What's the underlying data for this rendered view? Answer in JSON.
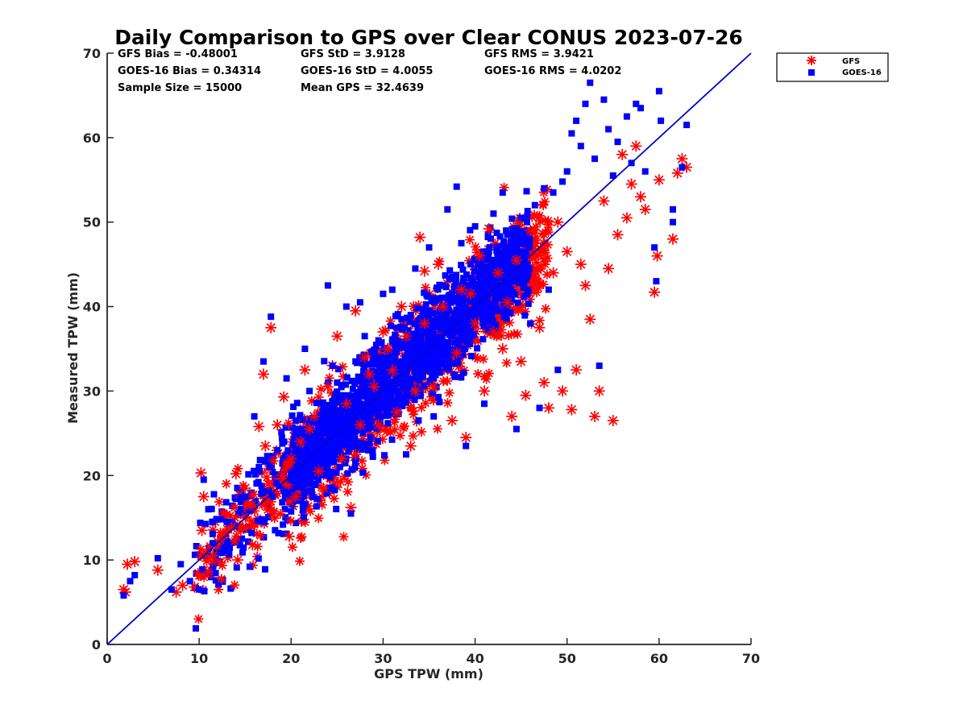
{
  "chart_data": {
    "type": "scatter",
    "title": "Daily Comparison to GPS over Clear CONUS 2023-07-26",
    "xlabel": "GPS TPW (mm)",
    "ylabel": "Measured TPW (mm)",
    "xlim": [
      0,
      70
    ],
    "ylim": [
      0,
      70
    ],
    "xticks": [
      0,
      10,
      20,
      30,
      40,
      50,
      60,
      70
    ],
    "yticks": [
      0,
      10,
      20,
      30,
      40,
      50,
      60,
      70
    ],
    "legend_position": "outside-top-right",
    "stats": {
      "gfs_bias": "GFS Bias = -0.48001",
      "gfs_std": "GFS StD = 3.9128",
      "gfs_rms": "GFS RMS = 3.9421",
      "goes_bias": "GOES-16 Bias = 0.34314",
      "goes_std": "GOES-16 StD = 4.0055",
      "goes_rms": "GOES-16 RMS = 4.0202",
      "sample_size": "Sample Size = 15000",
      "mean_gps": "Mean GPS = 32.4639"
    },
    "reference_line": {
      "name": "1:1 line",
      "from": [
        0,
        0
      ],
      "to": [
        70,
        70
      ],
      "color": "#0000cc"
    },
    "series": [
      {
        "name": "GFS",
        "marker": "asterisk",
        "color": "#ff0000",
        "points": [
          [
            1.8,
            6.5
          ],
          [
            2.2,
            9.5
          ],
          [
            3.0,
            9.8
          ],
          [
            2.0,
            6.2
          ],
          [
            5.5,
            8.8
          ],
          [
            7.5,
            6.2
          ],
          [
            8.2,
            7.0
          ],
          [
            9.5,
            6.8
          ],
          [
            10.2,
            20.3
          ],
          [
            10.5,
            17.5
          ],
          [
            10.3,
            13.5
          ],
          [
            11.5,
            10.5
          ],
          [
            12.0,
            12.2
          ],
          [
            13.5,
            13.8
          ],
          [
            14.0,
            20.2
          ],
          [
            14.2,
            10.0
          ],
          [
            15.0,
            18.5
          ],
          [
            15.8,
            11.8
          ],
          [
            16.5,
            25.8
          ],
          [
            17.0,
            32.0
          ],
          [
            17.2,
            23.5
          ],
          [
            17.8,
            37.5
          ],
          [
            17.5,
            19.0
          ],
          [
            18.5,
            26.0
          ],
          [
            19.2,
            29.3
          ],
          [
            19.8,
            12.8
          ],
          [
            20.0,
            22.0
          ],
          [
            21.5,
            32.5
          ],
          [
            22.0,
            25.5
          ],
          [
            23.0,
            20.5
          ],
          [
            24.0,
            30.5
          ],
          [
            25.0,
            36.5
          ],
          [
            25.5,
            22.0
          ],
          [
            26.5,
            16.2
          ],
          [
            27.0,
            39.5
          ],
          [
            27.5,
            26.0
          ],
          [
            28.0,
            34.0
          ],
          [
            29.0,
            30.5
          ],
          [
            30.0,
            37.0
          ],
          [
            31.0,
            32.5
          ],
          [
            31.5,
            27.5
          ],
          [
            32.0,
            40.0
          ],
          [
            33.0,
            23.5
          ],
          [
            34.0,
            48.2
          ],
          [
            34.5,
            44.2
          ],
          [
            35.5,
            30.5
          ],
          [
            36.0,
            45.0
          ],
          [
            37.5,
            26.5
          ],
          [
            38.0,
            34.5
          ],
          [
            39.0,
            24.5
          ],
          [
            39.5,
            41.5
          ],
          [
            40.0,
            38.0
          ],
          [
            40.5,
            46.0
          ],
          [
            41.0,
            30.0
          ],
          [
            41.5,
            49.2
          ],
          [
            42.0,
            37.0
          ],
          [
            43.0,
            35.0
          ],
          [
            43.5,
            40.5
          ],
          [
            44.0,
            27.0
          ],
          [
            44.5,
            45.5
          ],
          [
            45.0,
            33.5
          ],
          [
            45.5,
            29.5
          ],
          [
            46.5,
            43.0
          ],
          [
            47.0,
            37.5
          ],
          [
            47.5,
            31.0
          ],
          [
            48.0,
            28.0
          ],
          [
            48.5,
            44.0
          ],
          [
            49.0,
            50.0
          ],
          [
            49.5,
            30.0
          ],
          [
            50.0,
            46.5
          ],
          [
            50.5,
            27.8
          ],
          [
            51.0,
            32.5
          ],
          [
            51.5,
            45.0
          ],
          [
            52.0,
            42.5
          ],
          [
            52.5,
            38.5
          ],
          [
            53.0,
            27.0
          ],
          [
            53.5,
            30.0
          ],
          [
            54.0,
            52.5
          ],
          [
            54.5,
            44.5
          ],
          [
            55.0,
            26.5
          ],
          [
            55.5,
            48.5
          ],
          [
            56.0,
            58.0
          ],
          [
            56.5,
            50.5
          ],
          [
            57.0,
            54.5
          ],
          [
            57.5,
            59.0
          ],
          [
            58.0,
            53.0
          ],
          [
            58.5,
            51.5
          ],
          [
            59.5,
            41.7
          ],
          [
            59.8,
            46.0
          ],
          [
            60.0,
            55.0
          ],
          [
            61.5,
            48.0
          ],
          [
            62.0,
            55.8
          ],
          [
            62.5,
            57.5
          ],
          [
            63.0,
            56.5
          ],
          [
            20.5,
            17.5
          ],
          [
            22.5,
            27.0
          ],
          [
            24.5,
            33.0
          ],
          [
            26.0,
            28.5
          ],
          [
            28.5,
            32.0
          ],
          [
            30.5,
            35.0
          ],
          [
            32.5,
            36.5
          ],
          [
            34.5,
            38.0
          ],
          [
            36.5,
            40.0
          ],
          [
            38.5,
            42.0
          ],
          [
            42.5,
            44.0
          ],
          [
            46.0,
            49.0
          ],
          [
            18.0,
            15.5
          ],
          [
            19.0,
            20.0
          ],
          [
            21.0,
            24.0
          ],
          [
            23.5,
            18.5
          ],
          [
            27.0,
            22.5
          ],
          [
            29.5,
            26.0
          ],
          [
            33.5,
            30.0
          ]
        ]
      },
      {
        "name": "GOES-16",
        "marker": "square",
        "color": "#0000ff",
        "points": [
          [
            1.8,
            5.8
          ],
          [
            2.5,
            7.5
          ],
          [
            3.0,
            8.2
          ],
          [
            5.5,
            10.2
          ],
          [
            7.0,
            6.5
          ],
          [
            8.0,
            9.5
          ],
          [
            9.0,
            7.5
          ],
          [
            10.0,
            6.5
          ],
          [
            10.5,
            19.5
          ],
          [
            11.0,
            16.0
          ],
          [
            11.5,
            12.0
          ],
          [
            12.5,
            11.0
          ],
          [
            13.0,
            14.5
          ],
          [
            14.5,
            16.0
          ],
          [
            15.0,
            17.5
          ],
          [
            15.5,
            9.2
          ],
          [
            16.0,
            27.0
          ],
          [
            16.5,
            21.0
          ],
          [
            17.0,
            33.5
          ],
          [
            17.8,
            38.8
          ],
          [
            18.0,
            17.5
          ],
          [
            18.5,
            23.0
          ],
          [
            19.5,
            31.5
          ],
          [
            20.0,
            19.5
          ],
          [
            20.5,
            26.5
          ],
          [
            21.5,
            35.0
          ],
          [
            22.0,
            30.0
          ],
          [
            23.0,
            25.5
          ],
          [
            24.0,
            42.5
          ],
          [
            24.5,
            33.0
          ],
          [
            25.5,
            29.0
          ],
          [
            26.0,
            40.0
          ],
          [
            26.5,
            15.5
          ],
          [
            27.5,
            40.5
          ],
          [
            28.0,
            36.5
          ],
          [
            29.0,
            34.0
          ],
          [
            30.0,
            41.5
          ],
          [
            30.5,
            31.0
          ],
          [
            31.0,
            42.0
          ],
          [
            32.0,
            38.5
          ],
          [
            32.5,
            22.5
          ],
          [
            33.5,
            44.5
          ],
          [
            34.0,
            36.0
          ],
          [
            35.0,
            47.0
          ],
          [
            35.5,
            27.0
          ],
          [
            36.5,
            42.5
          ],
          [
            37.0,
            51.5
          ],
          [
            38.0,
            54.2
          ],
          [
            38.5,
            47.5
          ],
          [
            39.0,
            23.5
          ],
          [
            40.0,
            49.5
          ],
          [
            40.5,
            44.0
          ],
          [
            41.0,
            28.5
          ],
          [
            42.0,
            51.0
          ],
          [
            42.5,
            39.5
          ],
          [
            43.0,
            53.5
          ],
          [
            44.0,
            47.0
          ],
          [
            44.5,
            25.5
          ],
          [
            45.0,
            50.5
          ],
          [
            46.0,
            38.0
          ],
          [
            46.5,
            52.0
          ],
          [
            47.0,
            28.0
          ],
          [
            47.5,
            54.0
          ],
          [
            48.0,
            42.0
          ],
          [
            48.5,
            53.5
          ],
          [
            49.0,
            32.5
          ],
          [
            49.5,
            54.8
          ],
          [
            50.0,
            56.0
          ],
          [
            50.5,
            60.5
          ],
          [
            51.0,
            62.0
          ],
          [
            51.5,
            59.0
          ],
          [
            52.0,
            64.0
          ],
          [
            52.5,
            66.5
          ],
          [
            53.0,
            57.5
          ],
          [
            53.5,
            33.0
          ],
          [
            54.0,
            64.5
          ],
          [
            54.5,
            61.0
          ],
          [
            55.0,
            55.5
          ],
          [
            55.5,
            59.5
          ],
          [
            56.5,
            62.5
          ],
          [
            57.0,
            57.0
          ],
          [
            57.5,
            64.0
          ],
          [
            58.0,
            63.5
          ],
          [
            58.5,
            56.0
          ],
          [
            59.5,
            47.0
          ],
          [
            59.7,
            43.0
          ],
          [
            60.0,
            65.5
          ],
          [
            60.2,
            62.0
          ],
          [
            61.5,
            51.5
          ],
          [
            61.5,
            50.0
          ],
          [
            63.0,
            61.5
          ],
          [
            62.5,
            56.5
          ],
          [
            21.0,
            22.0
          ],
          [
            23.5,
            28.0
          ],
          [
            25.0,
            31.0
          ],
          [
            27.0,
            33.5
          ],
          [
            29.5,
            36.0
          ],
          [
            31.5,
            37.5
          ],
          [
            33.0,
            39.0
          ],
          [
            35.5,
            41.0
          ],
          [
            37.5,
            43.5
          ],
          [
            39.5,
            45.0
          ],
          [
            41.5,
            46.5
          ],
          [
            43.5,
            48.5
          ],
          [
            45.5,
            45.0
          ],
          [
            19.0,
            24.5
          ],
          [
            20.5,
            20.5
          ],
          [
            22.5,
            23.5
          ],
          [
            24.0,
            25.0
          ],
          [
            26.0,
            27.5
          ],
          [
            28.5,
            30.0
          ],
          [
            30.5,
            33.0
          ],
          [
            32.5,
            34.0
          ]
        ]
      }
    ]
  }
}
